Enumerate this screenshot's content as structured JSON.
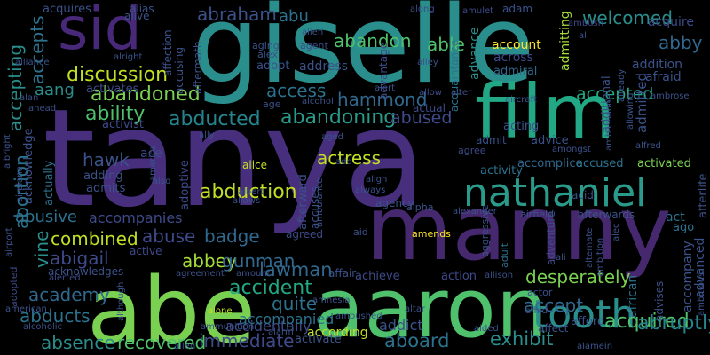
{
  "words": [
    {
      "text": "tanya",
      "color": "#472f7d"
    },
    {
      "text": "giselle",
      "color": "#2a8e8c"
    },
    {
      "text": "manny",
      "color": "#46286e"
    },
    {
      "text": "abe",
      "color": "#7ad151"
    },
    {
      "text": "aaron",
      "color": "#4fc06b"
    },
    {
      "text": "film",
      "color": "#22a884"
    },
    {
      "text": "sid",
      "color": "#482878"
    },
    {
      "text": "nathaniel",
      "color": "#2a9a8a"
    },
    {
      "text": "tooth",
      "color": "#2a8e8c"
    },
    {
      "text": "abduction",
      "color": "#c2df23"
    },
    {
      "text": "discussion",
      "color": "#c2df23"
    },
    {
      "text": "abandoned",
      "color": "#7ad151"
    },
    {
      "text": "ability",
      "color": "#4fc06b"
    },
    {
      "text": "abducted",
      "color": "#25858e"
    },
    {
      "text": "abandoning",
      "color": "#2a9a8a"
    },
    {
      "text": "abused",
      "color": "#3e4a89"
    },
    {
      "text": "hammond",
      "color": "#31688e"
    },
    {
      "text": "access",
      "color": "#2c728e"
    },
    {
      "text": "abraham",
      "color": "#3b528b"
    },
    {
      "text": "abandon",
      "color": "#4fc06b"
    },
    {
      "text": "able",
      "color": "#4fc06b"
    },
    {
      "text": "welcomed",
      "color": "#2a8e8c"
    },
    {
      "text": "abby",
      "color": "#31688e"
    },
    {
      "text": "accepted",
      "color": "#22a884"
    },
    {
      "text": "acquired",
      "color": "#4fc06b"
    },
    {
      "text": "abruptly",
      "color": "#25858e"
    },
    {
      "text": "desperately",
      "color": "#7ad151"
    },
    {
      "text": "accept",
      "color": "#31688e"
    },
    {
      "text": "exhibit",
      "color": "#2a8e8c"
    },
    {
      "text": "aboard",
      "color": "#2c728e"
    },
    {
      "text": "immediate",
      "color": "#3e4a89"
    },
    {
      "text": "recovered",
      "color": "#4fc06b"
    },
    {
      "text": "absence",
      "color": "#2a8e8c"
    },
    {
      "text": "abducts",
      "color": "#2c728e"
    },
    {
      "text": "academy",
      "color": "#31688e"
    },
    {
      "text": "abigail",
      "color": "#3e4a89"
    },
    {
      "text": "lawman",
      "color": "#31688e"
    },
    {
      "text": "combined",
      "color": "#c2df23"
    },
    {
      "text": "abuse",
      "color": "#3e4a89"
    },
    {
      "text": "badge",
      "color": "#31688e"
    },
    {
      "text": "abbey",
      "color": "#a5db36"
    },
    {
      "text": "gunman",
      "color": "#31688e"
    },
    {
      "text": "accident",
      "color": "#22a884"
    },
    {
      "text": "quite",
      "color": "#2c728e"
    },
    {
      "text": "abusive",
      "color": "#2c728e"
    },
    {
      "text": "accompanies",
      "color": "#3e4a89"
    },
    {
      "text": "hawk",
      "color": "#3b528b"
    },
    {
      "text": "actress",
      "color": "#c2df23"
    },
    {
      "text": "accidentally",
      "color": "#3e4a89"
    },
    {
      "text": "accompanied",
      "color": "#2c728e"
    },
    {
      "text": "according",
      "color": "#c2df23"
    },
    {
      "text": "addict",
      "color": "#3b528b"
    },
    {
      "text": "aang",
      "color": "#2a8e8c"
    },
    {
      "text": "abu",
      "color": "#2c728e"
    },
    {
      "text": "account",
      "color": "#fde725"
    },
    {
      "text": "accepting",
      "color": "#2a8e8c"
    },
    {
      "text": "accepts",
      "color": "#2c728e"
    },
    {
      "text": "abortion",
      "color": "#2c728e"
    },
    {
      "text": "vine",
      "color": "#2a8e8c"
    },
    {
      "text": "adam",
      "color": "#3b528b"
    },
    {
      "text": "acquire",
      "color": "#3e4a89"
    },
    {
      "text": "admitted",
      "color": "#3b528b"
    },
    {
      "text": "admitting",
      "color": "#a5db36"
    },
    {
      "text": "advance",
      "color": "#2a8e8c"
    },
    {
      "text": "acquaintance",
      "color": "#2c728e"
    },
    {
      "text": "advantage",
      "color": "#3e4a89"
    },
    {
      "text": "across",
      "color": "#3e4a89"
    },
    {
      "text": "admiral",
      "color": "#31688e"
    },
    {
      "text": "addition",
      "color": "#3b528b"
    },
    {
      "text": "afraid",
      "color": "#3b528b"
    },
    {
      "text": "additional",
      "color": "#3b528b"
    },
    {
      "text": "activated",
      "color": "#7ad151"
    },
    {
      "text": "accomplice",
      "color": "#31688e"
    },
    {
      "text": "accused",
      "color": "#2c728e"
    },
    {
      "text": "activity",
      "color": "#2c728e"
    },
    {
      "text": "acting",
      "color": "#3b528b"
    },
    {
      "text": "advice",
      "color": "#3b528b"
    },
    {
      "text": "admit",
      "color": "#3b528b"
    },
    {
      "text": "agree",
      "color": "#3e4a89"
    },
    {
      "text": "alpha",
      "color": "#3b528b"
    },
    {
      "text": "activist",
      "color": "#3e4a89"
    },
    {
      "text": "actual",
      "color": "#3e4a89"
    },
    {
      "text": "ace",
      "color": "#3e4a89"
    },
    {
      "text": "adding",
      "color": "#3b528b"
    },
    {
      "text": "admits",
      "color": "#3b528b"
    },
    {
      "text": "adoptive",
      "color": "#3e4a89"
    },
    {
      "text": "address",
      "color": "#3b528b"
    },
    {
      "text": "adopt",
      "color": "#3b528b"
    },
    {
      "text": "agent",
      "color": "#3e4a89"
    },
    {
      "text": "activates",
      "color": "#3e4a89"
    },
    {
      "text": "actually",
      "color": "#2c728e"
    },
    {
      "text": "acknowledge",
      "color": "#3b528b"
    },
    {
      "text": "achieve",
      "color": "#3e4a89"
    },
    {
      "text": "action",
      "color": "#3e4a89"
    },
    {
      "text": "actor",
      "color": "#3b528b"
    },
    {
      "text": "affect",
      "color": "#3b528b"
    },
    {
      "text": "afford",
      "color": "#3b528b"
    },
    {
      "text": "advises",
      "color": "#3b528b"
    },
    {
      "text": "accompany",
      "color": "#3b528b"
    },
    {
      "text": "advanced",
      "color": "#3b528b"
    },
    {
      "text": "afterlife",
      "color": "#3b528b"
    },
    {
      "text": "african",
      "color": "#2c728e"
    },
    {
      "text": "act",
      "color": "#2c728e"
    },
    {
      "text": "ago",
      "color": "#2c728e"
    },
    {
      "text": "adventure",
      "color": "#3e4a89"
    },
    {
      "text": "adult",
      "color": "#2c728e"
    },
    {
      "text": "afterwards",
      "color": "#3b528b"
    },
    {
      "text": "amends",
      "color": "#fde725"
    },
    {
      "text": "agreed",
      "color": "#3e4a89"
    },
    {
      "text": "aggressive",
      "color": "#3b528b"
    },
    {
      "text": "afterward",
      "color": "#3b528b"
    },
    {
      "text": "accuses",
      "color": "#3b528b"
    },
    {
      "text": "agency",
      "color": "#3b528b"
    },
    {
      "text": "activate",
      "color": "#3b528b"
    },
    {
      "text": "acknowledges",
      "color": "#3b528b"
    },
    {
      "text": "active",
      "color": "#3e4a89"
    },
    {
      "text": "alone",
      "color": "#c2df23"
    },
    {
      "text": "alice",
      "color": "#c2df23"
    },
    {
      "text": "adopted",
      "color": "#3e4a89"
    },
    {
      "text": "alerted",
      "color": "#3e4a89"
    },
    {
      "text": "acquires",
      "color": "#3b528b"
    },
    {
      "text": "alias",
      "color": "#3b528b"
    },
    {
      "text": "alive",
      "color": "#3b528b"
    },
    {
      "text": "affection",
      "color": "#3b528b"
    },
    {
      "text": "aftermath",
      "color": "#3b528b"
    },
    {
      "text": "accusing",
      "color": "#3b528b"
    },
    {
      "text": "aging",
      "color": "#3b528b"
    },
    {
      "text": "alex",
      "color": "#3b528b"
    },
    {
      "text": "along",
      "color": "#3e4a89"
    },
    {
      "text": "amulet",
      "color": "#3e4a89"
    },
    {
      "text": "ambush",
      "color": "#3e4a89"
    },
    {
      "text": "alien",
      "color": "#3b528b"
    },
    {
      "text": "al",
      "color": "#3b528b"
    },
    {
      "text": "alley",
      "color": "#3b528b"
    },
    {
      "text": "allow",
      "color": "#3e4a89"
    },
    {
      "text": "alert",
      "color": "#3b528b"
    },
    {
      "text": "alter",
      "color": "#3b528b"
    },
    {
      "text": "alliance",
      "color": "#3b528b"
    },
    {
      "text": "alan",
      "color": "#3b528b"
    },
    {
      "text": "ahead",
      "color": "#3b528b"
    },
    {
      "text": "alcohol",
      "color": "#3b528b"
    },
    {
      "text": "age",
      "color": "#3b528b"
    },
    {
      "text": "aircraft",
      "color": "#3b528b"
    },
    {
      "text": "ambassador",
      "color": "#3b528b"
    },
    {
      "text": "already",
      "color": "#3b528b"
    },
    {
      "text": "allowing",
      "color": "#3b528b"
    },
    {
      "text": "ambrose",
      "color": "#3b528b"
    },
    {
      "text": "alfred",
      "color": "#3b528b"
    },
    {
      "text": "albright",
      "color": "#3b528b"
    },
    {
      "text": "ally",
      "color": "#3b528b"
    },
    {
      "text": "aged",
      "color": "#3b528b"
    },
    {
      "text": "america",
      "color": "#3b528b"
    },
    {
      "text": "also",
      "color": "#3b528b"
    },
    {
      "text": "albert",
      "color": "#3b528b"
    },
    {
      "text": "allows",
      "color": "#3b528b"
    },
    {
      "text": "always",
      "color": "#3b528b"
    },
    {
      "text": "align",
      "color": "#3b528b"
    },
    {
      "text": "amongst",
      "color": "#3b528b"
    },
    {
      "text": "acid",
      "color": "#3b528b"
    },
    {
      "text": "add",
      "color": "#3b528b"
    },
    {
      "text": "airplane",
      "color": "#3b528b"
    },
    {
      "text": "airport",
      "color": "#3b528b"
    },
    {
      "text": "ambulance",
      "color": "#3b528b"
    },
    {
      "text": "alexander",
      "color": "#3b528b"
    },
    {
      "text": "airfield",
      "color": "#3b528b"
    },
    {
      "text": "alec",
      "color": "#3b528b"
    },
    {
      "text": "aid",
      "color": "#3b528b"
    },
    {
      "text": "ali",
      "color": "#3b528b"
    },
    {
      "text": "alternate",
      "color": "#3b528b"
    },
    {
      "text": "ambition",
      "color": "#3b528b"
    },
    {
      "text": "allison",
      "color": "#3b528b"
    },
    {
      "text": "affair",
      "color": "#3b528b"
    },
    {
      "text": "amount",
      "color": "#3b528b"
    },
    {
      "text": "agreement",
      "color": "#3b528b"
    },
    {
      "text": "american",
      "color": "#3b528b"
    },
    {
      "text": "although",
      "color": "#3b528b"
    },
    {
      "text": "alcoholic",
      "color": "#3b528b"
    },
    {
      "text": "amnesia",
      "color": "#3b528b"
    },
    {
      "text": "ambushed",
      "color": "#3b528b"
    },
    {
      "text": "altar",
      "color": "#3b528b"
    },
    {
      "text": "amid",
      "color": "#3b528b"
    },
    {
      "text": "aided",
      "color": "#3b528b"
    },
    {
      "text": "alarm",
      "color": "#3b528b"
    },
    {
      "text": "ammunition",
      "color": "#3b528b"
    },
    {
      "text": "allen",
      "color": "#3b528b"
    },
    {
      "text": "alamein",
      "color": "#3b528b"
    },
    {
      "text": "ambitious",
      "color": "#3b528b"
    },
    {
      "text": "alright",
      "color": "#3b528b"
    }
  ]
}
